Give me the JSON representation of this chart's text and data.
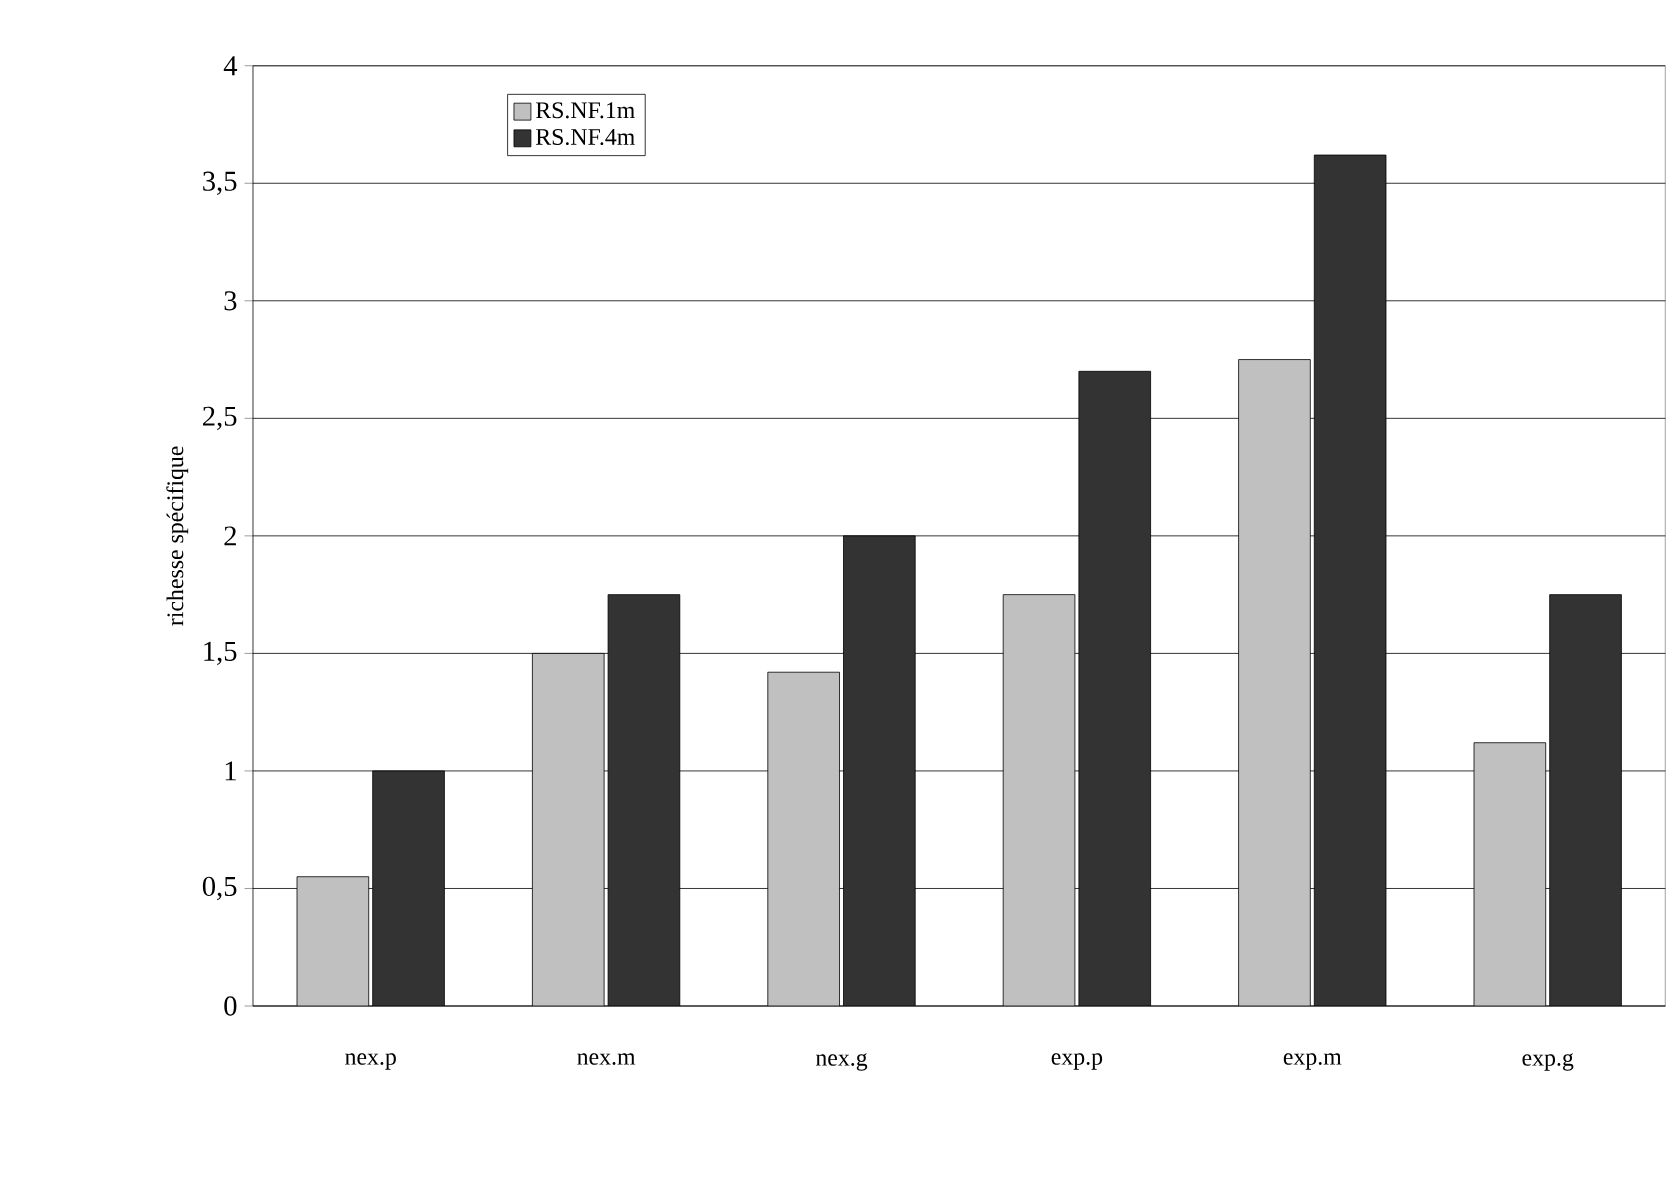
{
  "chart_data": {
    "type": "bar",
    "ylabel": "richesse spécifique",
    "categories": [
      "nex.p",
      "nex.m",
      "nex.g",
      "exp.p",
      "exp.m",
      "exp.g"
    ],
    "series": [
      {
        "name": "RS.NF.1m",
        "color": "#c0c0c0",
        "values": [
          0.55,
          1.5,
          1.42,
          1.75,
          2.75,
          1.12
        ]
      },
      {
        "name": "RS.NF.4m",
        "color": "#333333",
        "values": [
          1.0,
          1.75,
          2.0,
          2.7,
          3.62,
          1.75
        ]
      }
    ],
    "ylim": [
      0,
      4
    ],
    "yticks": [
      0,
      {
        "value": 0.5,
        "label": "0,5"
      },
      1,
      {
        "value": 1.5,
        "label": "1,5"
      },
      2,
      {
        "value": 2.5,
        "label": "2,5"
      },
      3,
      {
        "value": 3.5,
        "label": "3,5"
      },
      4
    ],
    "grid": "y",
    "legend": "top left"
  }
}
